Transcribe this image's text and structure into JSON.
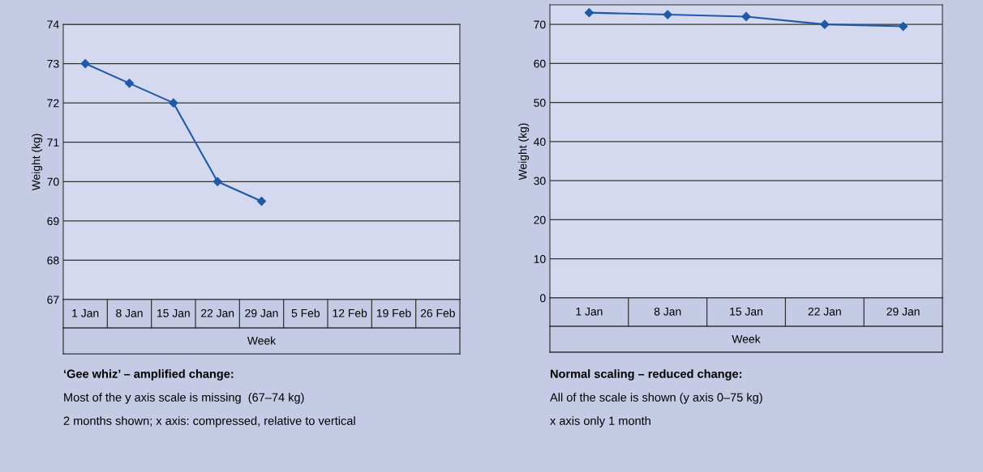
{
  "chart_data": [
    {
      "type": "line",
      "categories": [
        "1 Jan",
        "8 Jan",
        "15 Jan",
        "22 Jan",
        "29 Jan",
        "5 Feb",
        "12 Feb",
        "19 Feb",
        "26 Feb"
      ],
      "xlabel": "Week",
      "ylabel": "Weight (kg)",
      "series": [
        {
          "color": "#1f5aa6",
          "values": [
            73,
            72.5,
            72,
            70,
            69.5,
            null,
            null,
            null,
            null
          ]
        }
      ],
      "ylim": [
        67,
        74
      ],
      "yticks": [
        67,
        68,
        69,
        70,
        71,
        72,
        73,
        74
      ],
      "grid": "y",
      "marker": "diamond",
      "line_style": "solid",
      "legend": false,
      "annotations": [
        "‘Gee whiz’ – amplified change:",
        "Most of the y axis scale is missing  (67–74 kg)",
        "2 months shown; x axis: compressed, relative to vertical"
      ]
    },
    {
      "type": "line",
      "categories": [
        "1 Jan",
        "8 Jan",
        "15 Jan",
        "22 Jan",
        "29 Jan"
      ],
      "xlabel": "Week",
      "ylabel": "Weight (kg)",
      "series": [
        {
          "color": "#1f5aa6",
          "values": [
            73,
            72.5,
            72,
            70,
            69.5
          ]
        }
      ],
      "ylim": [
        0,
        75
      ],
      "yticks": [
        0,
        10,
        20,
        30,
        40,
        50,
        60,
        70
      ],
      "grid": "y",
      "marker": "diamond",
      "line_style": "solid",
      "legend": false,
      "annotations": [
        "Normal scaling – reduced change:",
        "All of the scale is shown (y axis 0–75 kg)",
        "x axis only 1 month"
      ]
    }
  ]
}
